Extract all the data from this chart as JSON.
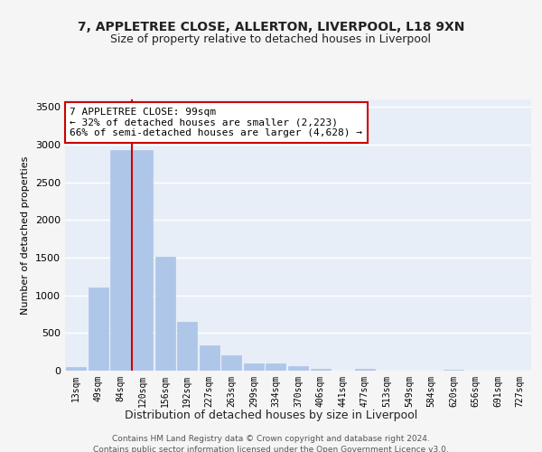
{
  "title_line1": "7, APPLETREE CLOSE, ALLERTON, LIVERPOOL, L18 9XN",
  "title_line2": "Size of property relative to detached houses in Liverpool",
  "xlabel": "Distribution of detached houses by size in Liverpool",
  "ylabel": "Number of detached properties",
  "categories": [
    "13sqm",
    "49sqm",
    "84sqm",
    "120sqm",
    "156sqm",
    "192sqm",
    "227sqm",
    "263sqm",
    "299sqm",
    "334sqm",
    "370sqm",
    "406sqm",
    "441sqm",
    "477sqm",
    "513sqm",
    "549sqm",
    "584sqm",
    "620sqm",
    "656sqm",
    "691sqm",
    "727sqm"
  ],
  "values": [
    50,
    1100,
    2930,
    2930,
    1510,
    645,
    335,
    210,
    100,
    95,
    65,
    30,
    5,
    25,
    5,
    0,
    0,
    15,
    0,
    0,
    0
  ],
  "bar_color": "#aec6e8",
  "bar_edge_color": "#aec6e8",
  "property_line_color": "#cc0000",
  "annotation_text": "7 APPLETREE CLOSE: 99sqm\n← 32% of detached houses are smaller (2,223)\n66% of semi-detached houses are larger (4,628) →",
  "annotation_box_color": "#ffffff",
  "annotation_box_edgecolor": "#cc0000",
  "ylim": [
    0,
    3600
  ],
  "yticks": [
    0,
    500,
    1000,
    1500,
    2000,
    2500,
    3000,
    3500
  ],
  "axes_bg_color": "#e8eef7",
  "fig_bg_color": "#f5f5f5",
  "grid_color": "#ffffff",
  "footer_line1": "Contains HM Land Registry data © Crown copyright and database right 2024.",
  "footer_line2": "Contains public sector information licensed under the Open Government Licence v3.0."
}
